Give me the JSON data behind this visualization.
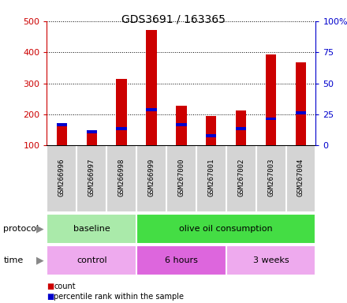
{
  "title": "GDS3691 / 163365",
  "samples": [
    "GSM266996",
    "GSM266997",
    "GSM266998",
    "GSM266999",
    "GSM267000",
    "GSM267001",
    "GSM267002",
    "GSM267003",
    "GSM267004"
  ],
  "count_values": [
    170,
    150,
    315,
    472,
    228,
    196,
    212,
    393,
    367
  ],
  "percentile_bottom": [
    162,
    140,
    148,
    210,
    163,
    127,
    148,
    182,
    200
  ],
  "percentile_top": [
    172,
    150,
    158,
    220,
    172,
    136,
    158,
    190,
    210
  ],
  "y_min": 100,
  "y_max": 500,
  "y_ticks": [
    100,
    200,
    300,
    400,
    500
  ],
  "y2_ticks": [
    0,
    25,
    50,
    75,
    100
  ],
  "bar_color": "#cc0000",
  "percentile_color": "#0000cc",
  "protocol_groups": [
    {
      "label": "baseline",
      "start": 0,
      "end": 3,
      "color": "#aaeaaa"
    },
    {
      "label": "olive oil consumption",
      "start": 3,
      "end": 9,
      "color": "#44dd44"
    }
  ],
  "time_groups": [
    {
      "label": "control",
      "start": 0,
      "end": 3,
      "color": "#eeaaee"
    },
    {
      "label": "6 hours",
      "start": 3,
      "end": 6,
      "color": "#dd66dd"
    },
    {
      "label": "3 weeks",
      "start": 6,
      "end": 9,
      "color": "#eeaaee"
    }
  ],
  "legend_count_label": "count",
  "legend_percentile_label": "percentile rank within the sample",
  "protocol_label": "protocol",
  "time_label": "time",
  "bar_width": 0.35,
  "tick_label_color_left": "#cc0000",
  "tick_label_color_right": "#0000cc"
}
